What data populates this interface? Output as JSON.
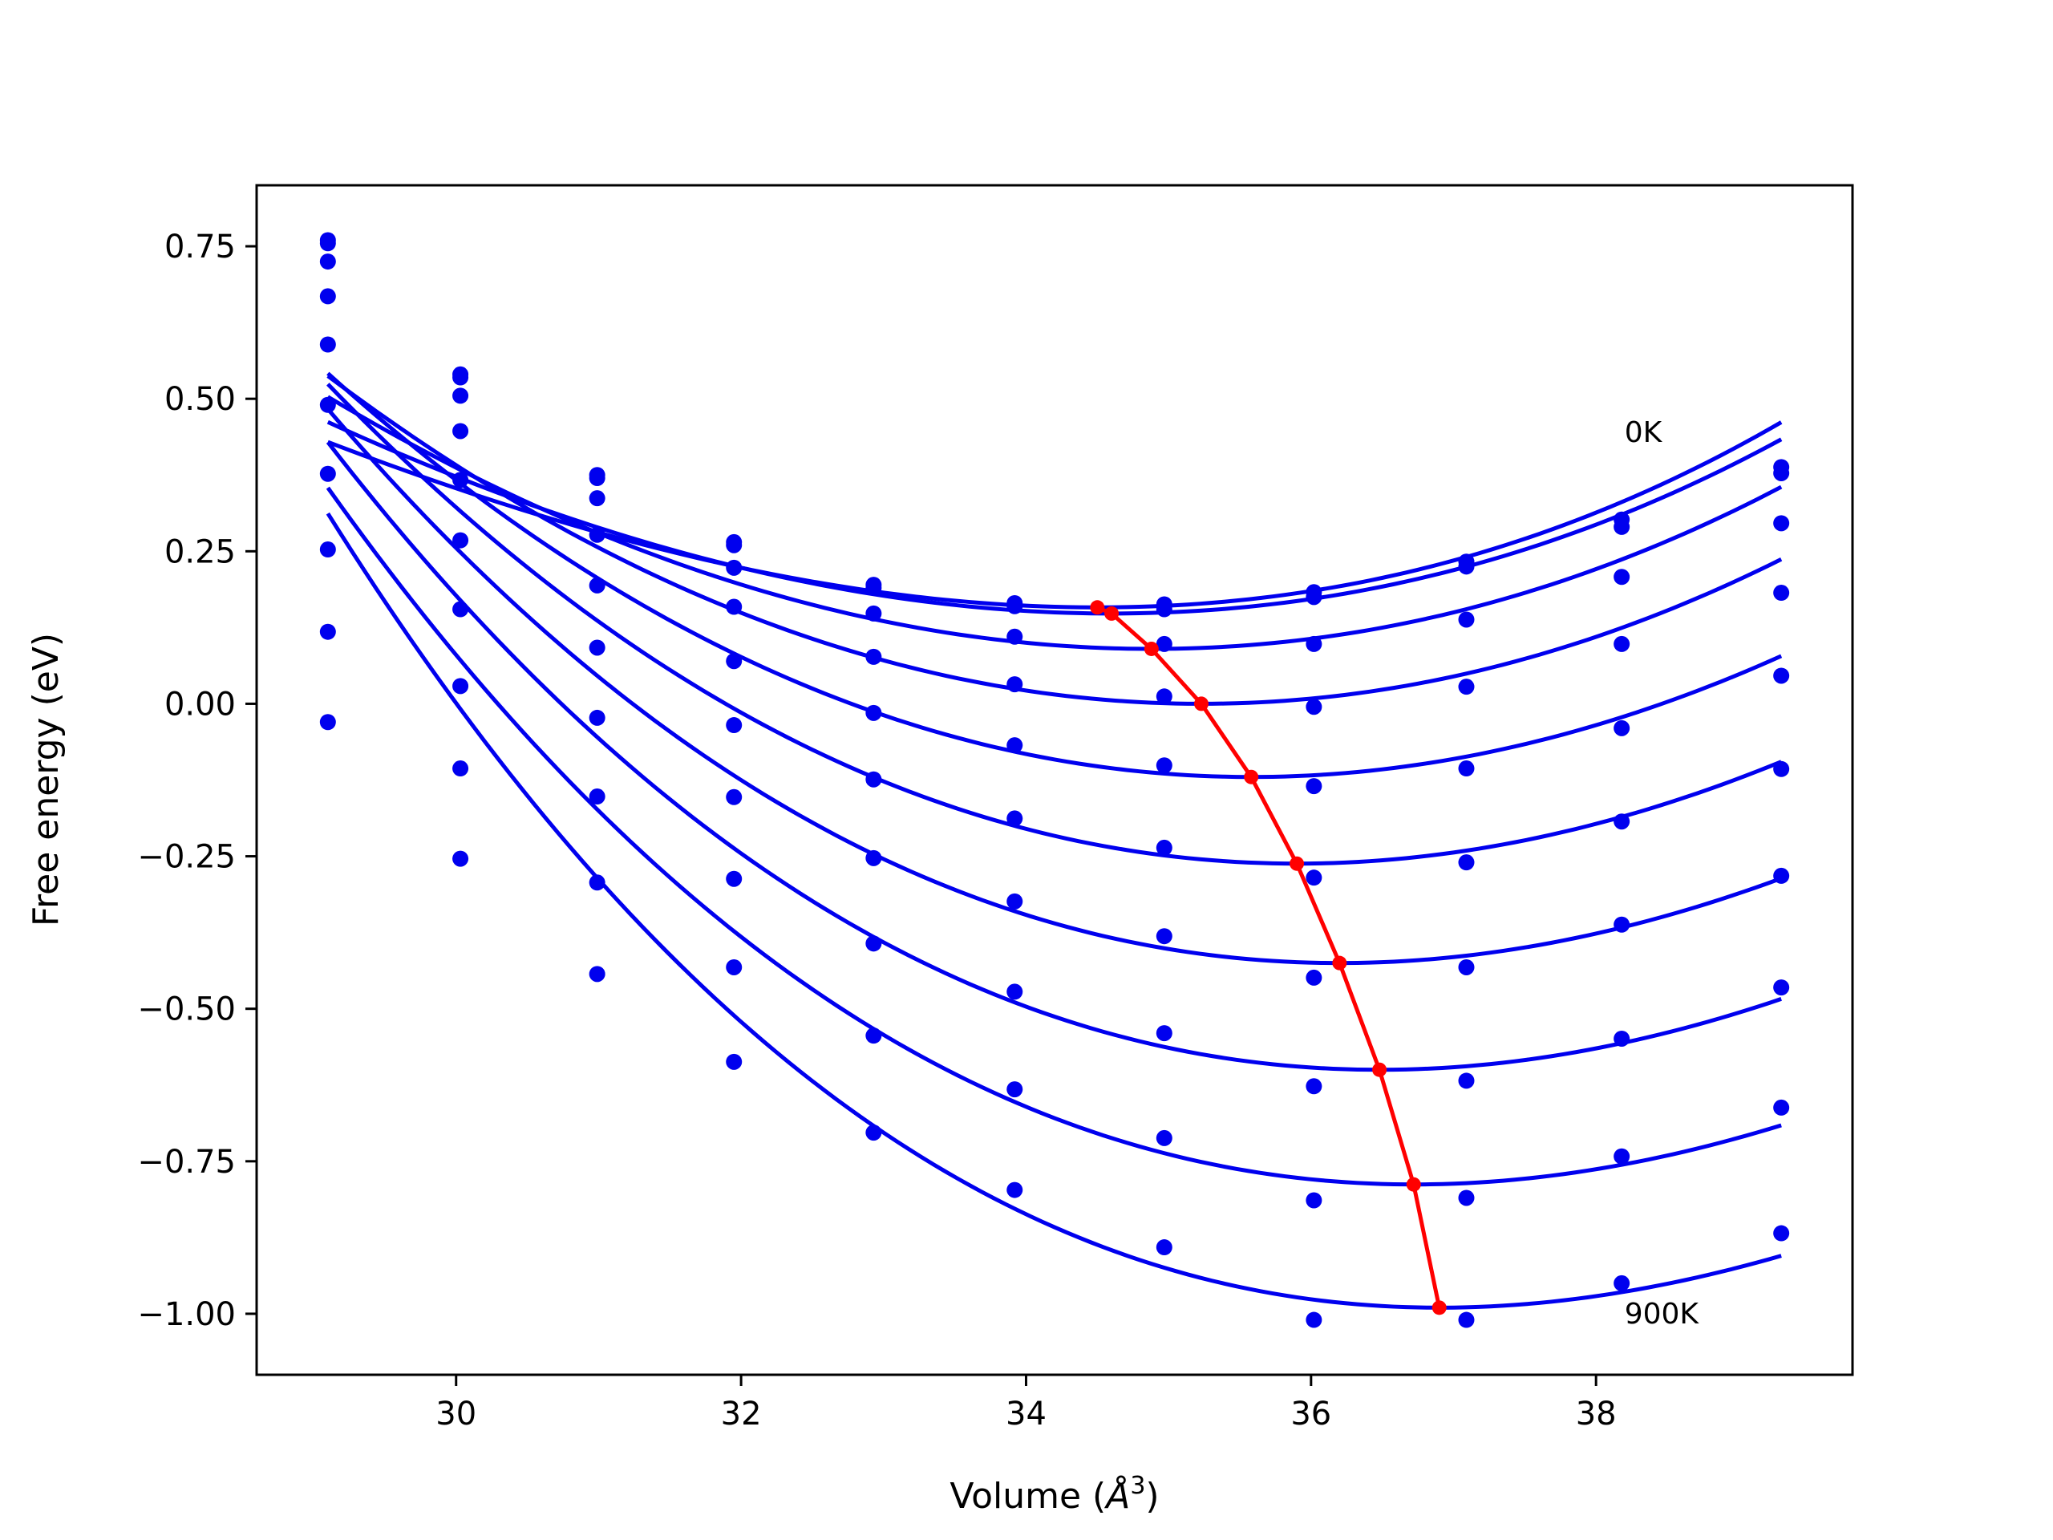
{
  "chart_data": {
    "type": "scatter",
    "title": "",
    "xlabel": "Volume (",
    "xlabel_symbol": "Å",
    "xlabel_superscript": "3",
    "xlabel_close": ")",
    "ylabel": "Free energy (eV)",
    "xlim": [
      28.6,
      39.8
    ],
    "ylim": [
      -1.1,
      0.85
    ],
    "xticks": [
      30,
      32,
      34,
      36,
      38
    ],
    "xtick_labels": [
      "30",
      "32",
      "34",
      "36",
      "38"
    ],
    "yticks": [
      -1.0,
      -0.75,
      -0.5,
      -0.25,
      0.0,
      0.25,
      0.5,
      0.75
    ],
    "ytick_labels": [
      "−1.00",
      "−0.75",
      "−0.50",
      "−0.25",
      "0.00",
      "0.25",
      "0.50",
      "0.75"
    ],
    "grid": false,
    "colors": {
      "data": "#0000ee",
      "equilibrium": "#ff0000",
      "frame": "#000000"
    },
    "annotations": [
      {
        "text": "0K",
        "x": 38.2,
        "y": 0.445
      },
      {
        "text": "900K",
        "x": 38.2,
        "y": -1.0
      }
    ],
    "x": [
      29.1,
      30.03,
      30.99,
      31.95,
      32.93,
      33.92,
      34.97,
      36.02,
      37.09,
      38.18,
      39.3
    ],
    "series": [
      {
        "values": [
          0.76,
          0.54,
          0.375,
          0.265,
          0.195,
          0.165,
          0.163,
          0.183,
          0.233,
          0.302,
          0.388
        ],
        "fit": {
          "x0": 34.5,
          "y0": 0.158,
          "a": 0.01135,
          "b": 0.00038
        }
      },
      {
        "values": [
          0.755,
          0.535,
          0.37,
          0.26,
          0.19,
          0.16,
          0.155,
          0.175,
          0.225,
          0.29,
          0.378
        ],
        "fit": {
          "x0": 34.6,
          "y0": 0.148,
          "a": 0.01175,
          "b": 0.00025
        }
      },
      {
        "values": [
          0.725,
          0.505,
          0.337,
          0.223,
          0.148,
          0.11,
          0.098,
          0.098,
          0.138,
          0.208,
          0.296
        ],
        "fit": {
          "x0": 34.88,
          "y0": 0.09,
          "a": 0.01306,
          "b": 0.00012
        }
      },
      {
        "values": [
          0.668,
          0.447,
          0.277,
          0.159,
          0.077,
          0.032,
          0.012,
          -0.005,
          0.028,
          0.098,
          0.182
        ],
        "fit": {
          "x0": 35.23,
          "y0": 0.0,
          "a": 0.0143,
          "b": 0.0
        }
      },
      {
        "values": [
          0.589,
          0.367,
          0.194,
          0.07,
          -0.015,
          -0.068,
          -0.101,
          -0.135,
          -0.106,
          -0.04,
          0.046
        ],
        "fit": {
          "x0": 35.58,
          "y0": -0.12,
          "a": 0.01485,
          "b": -0.00014
        }
      },
      {
        "values": [
          0.49,
          0.268,
          0.092,
          -0.035,
          -0.124,
          -0.188,
          -0.236,
          -0.285,
          -0.26,
          -0.193,
          -0.107
        ],
        "fit": {
          "x0": 35.9,
          "y0": -0.262,
          "a": 0.0153,
          "b": -0.00025
        }
      },
      {
        "values": [
          0.377,
          0.155,
          -0.023,
          -0.153,
          -0.253,
          -0.324,
          -0.381,
          -0.449,
          -0.432,
          -0.362,
          -0.282
        ],
        "fit": {
          "x0": 36.2,
          "y0": -0.425,
          "a": 0.01553,
          "b": -0.00035
        }
      },
      {
        "values": [
          0.253,
          0.029,
          -0.152,
          -0.287,
          -0.393,
          -0.472,
          -0.54,
          -0.627,
          -0.618,
          -0.549,
          -0.465
        ],
        "fit": {
          "x0": 36.48,
          "y0": -0.6,
          "a": 0.01579,
          "b": -0.00042
        }
      },
      {
        "values": [
          0.118,
          -0.106,
          -0.293,
          -0.432,
          -0.544,
          -0.632,
          -0.712,
          -0.814,
          -0.81,
          -0.742,
          -0.662
        ],
        "fit": {
          "x0": 36.72,
          "y0": -0.788,
          "a": 0.01586,
          "b": -0.0005
        }
      },
      {
        "values": [
          -0.03,
          -0.254,
          -0.443,
          -0.587,
          -0.703,
          -0.797,
          -0.891,
          -1.01,
          -1.01,
          -0.95,
          -0.868
        ],
        "fit": {
          "x0": 36.9,
          "y0": -0.99,
          "a": 0.01633,
          "b": -0.00065
        }
      }
    ],
    "equilibrium": {
      "x": [
        34.5,
        34.6,
        34.88,
        35.23,
        35.58,
        35.9,
        36.2,
        36.48,
        36.72,
        36.9
      ],
      "y": [
        0.158,
        0.148,
        0.09,
        0.0,
        -0.12,
        -0.262,
        -0.425,
        -0.6,
        -0.788,
        -0.99
      ]
    }
  }
}
